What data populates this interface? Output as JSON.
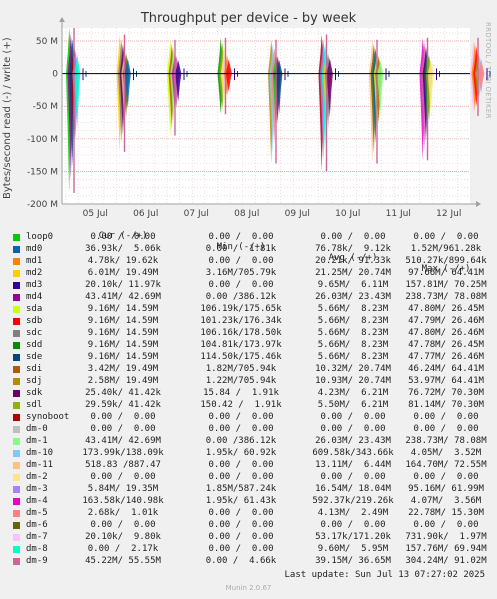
{
  "title": "Throughput per device - by week",
  "ylabel": "Bytes/second read (-) / write (+)",
  "side_credit": "RRDTOOL / TOBI OETIKER",
  "last_update": "Last update: Sun Jul 13 07:27:02 2025",
  "footer": "Munin 2.0.67",
  "legend_header": {
    "cur": "Cur (-/+)",
    "min": "Min (-/+)",
    "avg": "Avg (-/+)",
    "max": "Max (-/+)"
  },
  "legend": [
    {
      "name": "loop0",
      "color": "#00cc00",
      "cur": "0.00 /  0.00",
      "min": "0.00 /  0.00",
      "avg": "0.00 /  0.00",
      "max": "0.00 /  0.00"
    },
    {
      "name": "md0",
      "color": "#0066b3",
      "cur": "36.93k/  5.06k",
      "min": "0.00 /  1.81k",
      "avg": "76.78k/  9.12k",
      "max": "1.52M/961.28k"
    },
    {
      "name": "md1",
      "color": "#ff8000",
      "cur": "4.78k/ 19.62k",
      "min": "0.00 /  0.00",
      "avg": "20.21k/ 91.33k",
      "max": "510.27k/899.64k"
    },
    {
      "name": "md2",
      "color": "#ffcc00",
      "cur": "6.01M/ 19.49M",
      "min": "3.16M/705.79k",
      "avg": "21.25M/ 20.74M",
      "max": "97.66M/ 64.41M"
    },
    {
      "name": "md3",
      "color": "#330099",
      "cur": "20.10k/ 11.97k",
      "min": "0.00 /  0.00",
      "avg": "9.65M/  6.11M",
      "max": "157.81M/ 70.25M"
    },
    {
      "name": "md4",
      "color": "#990099",
      "cur": "43.41M/ 42.69M",
      "min": "0.00 /386.12k",
      "avg": "26.03M/ 23.43M",
      "max": "238.73M/ 78.08M"
    },
    {
      "name": "sda",
      "color": "#ccff00",
      "cur": "9.16M/ 14.59M",
      "min": "106.19k/175.65k",
      "avg": "5.66M/  8.23M",
      "max": "47.80M/ 26.45M"
    },
    {
      "name": "sdb",
      "color": "#ff0000",
      "cur": "9.16M/ 14.59M",
      "min": "101.23k/176.34k",
      "avg": "5.66M/  8.23M",
      "max": "47.79M/ 26.46M"
    },
    {
      "name": "sdc",
      "color": "#808080",
      "cur": "9.16M/ 14.59M",
      "min": "106.16k/178.50k",
      "avg": "5.66M/  8.23M",
      "max": "47.80M/ 26.46M"
    },
    {
      "name": "sdd",
      "color": "#008f00",
      "cur": "9.16M/ 14.59M",
      "min": "104.81k/173.97k",
      "avg": "5.66M/  8.23M",
      "max": "47.78M/ 26.45M"
    },
    {
      "name": "sde",
      "color": "#00487d",
      "cur": "9.16M/ 14.59M",
      "min": "114.50k/175.46k",
      "avg": "5.66M/  8.23M",
      "max": "47.77M/ 26.46M"
    },
    {
      "name": "sdi",
      "color": "#b35a00",
      "cur": "3.42M/ 19.49M",
      "min": "1.82M/705.94k",
      "avg": "10.32M/ 20.74M",
      "max": "46.24M/ 64.41M"
    },
    {
      "name": "sdj",
      "color": "#b38f00",
      "cur": "2.58M/ 19.49M",
      "min": "1.22M/705.94k",
      "avg": "10.93M/ 20.74M",
      "max": "53.97M/ 64.41M"
    },
    {
      "name": "sdk",
      "color": "#6b006b",
      "cur": "25.40k/ 41.42k",
      "min": "15.84 /  1.91k",
      "avg": "4.23M/  6.21M",
      "max": "76.72M/ 70.30M"
    },
    {
      "name": "sdl",
      "color": "#8fb300",
      "cur": "29.59k/ 41.42k",
      "min": "150.42 /  1.91k",
      "avg": "5.50M/  6.21M",
      "max": "81.14M/ 70.30M"
    },
    {
      "name": "synoboot",
      "color": "#b30000",
      "cur": "0.00 /  0.00",
      "min": "0.00 /  0.00",
      "avg": "0.00 /  0.00",
      "max": "0.00 /  0.00"
    },
    {
      "name": "dm-0",
      "color": "#bebebe",
      "cur": "0.00 /  0.00",
      "min": "0.00 /  0.00",
      "avg": "0.00 /  0.00",
      "max": "0.00 /  0.00"
    },
    {
      "name": "dm-1",
      "color": "#80ff80",
      "cur": "43.41M/ 42.69M",
      "min": "0.00 /386.12k",
      "avg": "26.03M/ 23.43M",
      "max": "238.73M/ 78.08M"
    },
    {
      "name": "dm-10",
      "color": "#80c9ff",
      "cur": "173.99k/138.09k",
      "min": "1.95k/ 60.92k",
      "avg": "609.58k/343.66k",
      "max": "4.05M/  3.52M"
    },
    {
      "name": "dm-11",
      "color": "#ffc080",
      "cur": "518.83 /887.47",
      "min": "0.00 /  0.00",
      "avg": "13.11M/  6.44M",
      "max": "164.70M/ 72.55M"
    },
    {
      "name": "dm-2",
      "color": "#ffe680",
      "cur": "0.00 /  0.00",
      "min": "0.00 /  0.00",
      "avg": "0.00 /  0.00",
      "max": "0.00 /  0.00"
    },
    {
      "name": "dm-3",
      "color": "#aa80ff",
      "cur": "5.84M/ 19.35M",
      "min": "1.85M/587.24k",
      "avg": "16.54M/ 18.04M",
      "max": "95.16M/ 61.99M"
    },
    {
      "name": "dm-4",
      "color": "#ee00cc",
      "cur": "163.58k/140.98k",
      "min": "1.95k/ 61.43k",
      "avg": "592.37k/219.26k",
      "max": "4.07M/  3.56M"
    },
    {
      "name": "dm-5",
      "color": "#ff8080",
      "cur": "2.68k/  1.01k",
      "min": "0.00 /  0.00",
      "avg": "4.13M/  2.49M",
      "max": "22.78M/ 15.30M"
    },
    {
      "name": "dm-6",
      "color": "#666600",
      "cur": "0.00 /  0.00",
      "min": "0.00 /  0.00",
      "avg": "0.00 /  0.00",
      "max": "0.00 /  0.00"
    },
    {
      "name": "dm-7",
      "color": "#ffbfff",
      "cur": "20.10k/  9.80k",
      "min": "0.00 /  0.00",
      "avg": "53.17k/171.20k",
      "max": "731.90k/  1.97M"
    },
    {
      "name": "dm-8",
      "color": "#00ffcc",
      "cur": "0.00 /  2.17k",
      "min": "0.00 /  0.00",
      "avg": "9.60M/  5.95M",
      "max": "157.76M/ 69.94M"
    },
    {
      "name": "dm-9",
      "color": "#cc6699",
      "cur": "45.22M/ 55.55M",
      "min": "0.00 /  4.66k",
      "avg": "39.15M/ 36.65M",
      "max": "304.24M/ 91.02M"
    }
  ],
  "chart_data": {
    "type": "area",
    "title": "Throughput per device - by week",
    "ylabel": "Bytes/second read (-) / write (+)",
    "ylim": [
      -200,
      70
    ],
    "y_unit": "M",
    "y_ticks": [
      50,
      0,
      -50,
      -100,
      -150,
      -200
    ],
    "y_tick_labels": [
      "50 M",
      "0",
      "-50 M",
      "-100 M",
      "-150 M",
      "-200 M"
    ],
    "x_tick_labels": [
      "05 Jul",
      "06 Jul",
      "07 Jul",
      "08 Jul",
      "09 Jul",
      "10 Jul",
      "11 Jul",
      "12 Jul"
    ],
    "grid": true,
    "bursts": [
      {
        "day": 0,
        "write": 70,
        "read": -183,
        "color": "#cc6699"
      },
      {
        "day": 1,
        "write": 60,
        "read": -120,
        "color": "#cc6699"
      },
      {
        "day": 2,
        "write": 52,
        "read": -95,
        "color": "#cc6699"
      },
      {
        "day": 3,
        "write": 55,
        "read": -62,
        "color": "#cc6699"
      },
      {
        "day": 4,
        "write": 52,
        "read": -138,
        "color": "#cc6699"
      },
      {
        "day": 5,
        "write": 60,
        "read": -150,
        "color": "#cc6699"
      },
      {
        "day": 6,
        "write": 52,
        "read": -138,
        "color": "#cc6699"
      },
      {
        "day": 7,
        "write": 55,
        "read": -133,
        "color": "#cc6699"
      },
      {
        "day": 8,
        "write": 55,
        "read": -65,
        "color": "#cc6699"
      }
    ]
  }
}
